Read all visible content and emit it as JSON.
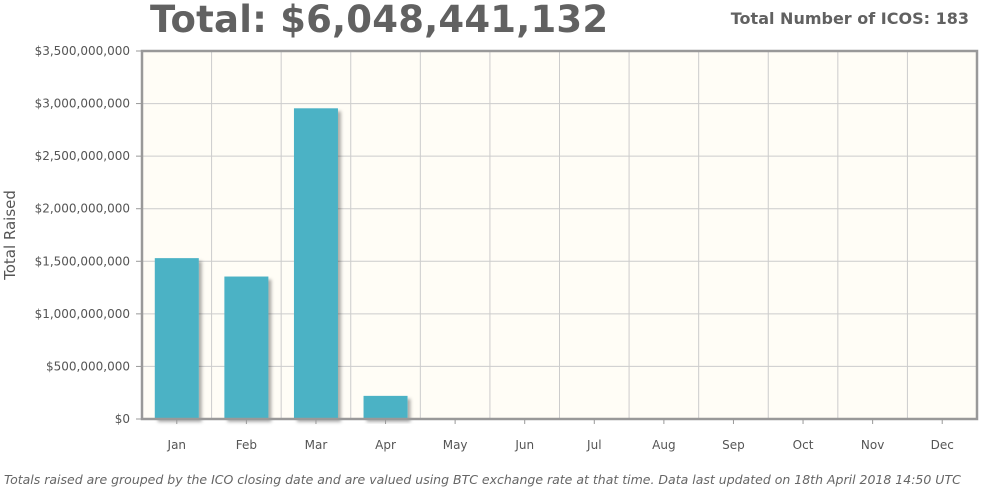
{
  "header": {
    "total_label": "Total: $6,048,441,132",
    "icos_label": "Total Number of ICOS:",
    "icos_count": "183"
  },
  "footnote": "Totals raised are grouped by the ICO closing date and are valued using BTC exchange rate at that time. Data last updated on 18th April 2018 14:50 UTC",
  "colors": {
    "bar": "#4bb2c5",
    "plot_background": "#fffdf6",
    "grid": "#cccccc",
    "frame": "#999999"
  },
  "chart_data": {
    "type": "bar",
    "categories": [
      "Jan",
      "Feb",
      "Mar",
      "Apr",
      "May",
      "Jun",
      "Jul",
      "Aug",
      "Sep",
      "Oct",
      "Nov",
      "Dec"
    ],
    "values": [
      1530000000,
      1355000000,
      2955000000,
      220000000,
      0,
      0,
      0,
      0,
      0,
      0,
      0,
      0
    ],
    "ylabel": "Total Raised",
    "xlabel": "",
    "ylim": [
      0,
      3500000000
    ],
    "yticks": [
      0,
      500000000,
      1000000000,
      1500000000,
      2000000000,
      2500000000,
      3000000000,
      3500000000
    ],
    "ytick_labels": [
      "$0",
      "$500,000,000",
      "$1,000,000,000",
      "$1,500,000,000",
      "$2,000,000,000",
      "$2,500,000,000",
      "$3,000,000,000",
      "$3,500,000,000"
    ],
    "grid": true,
    "legend": "none"
  }
}
